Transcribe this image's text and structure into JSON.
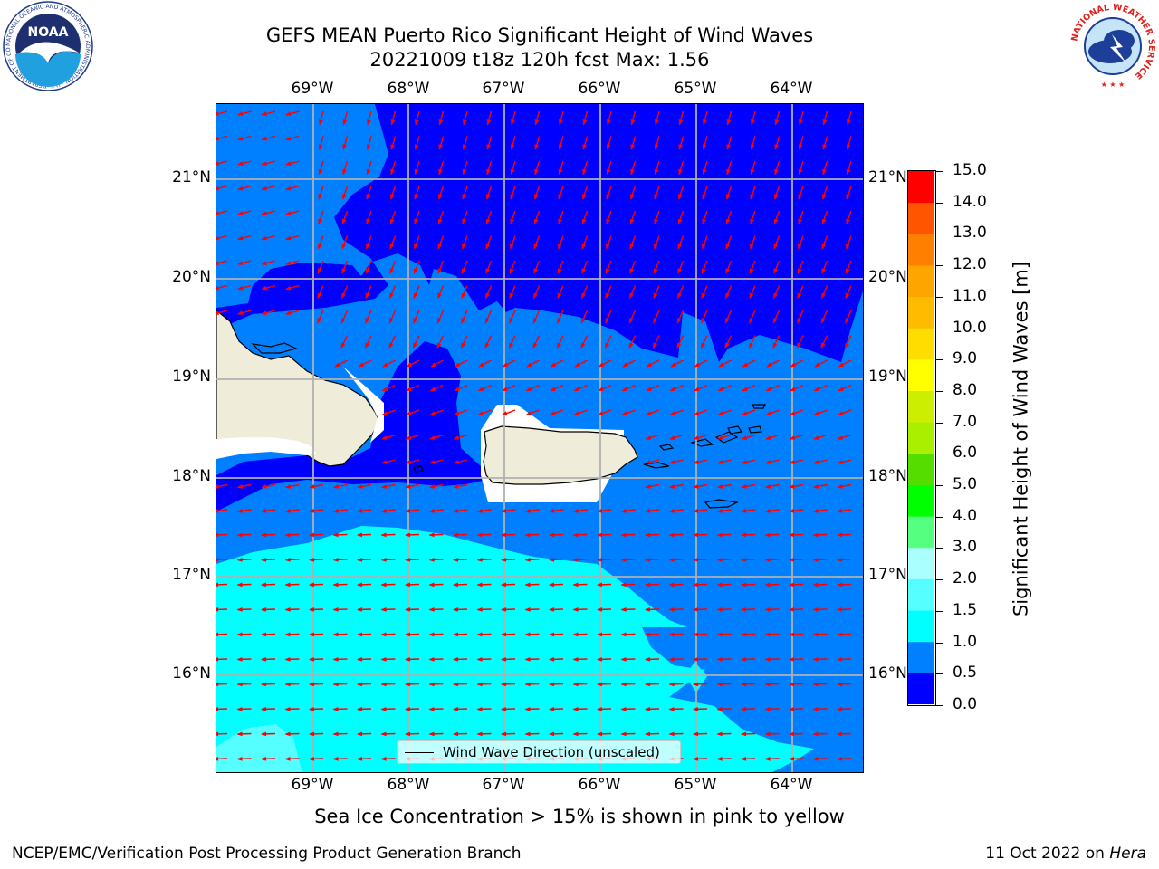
{
  "title": {
    "line1": "GEFS MEAN Puerto Rico Significant Height of Wind Waves",
    "line2": "20221009 t18z 120h fcst   Max: 1.56"
  },
  "logos": {
    "noaa_text": "NOAA",
    "noaa_ring_text": "NATIONAL OCEANIC AND ATMOSPHERIC ADMINISTRATION · U.S. DEPARTMENT OF COMMERCE",
    "nws_ring_text": "NATIONAL WEATHER SERVICE"
  },
  "map": {
    "lon_labels": [
      "69°W",
      "68°W",
      "67°W",
      "66°W",
      "65°W",
      "64°W"
    ],
    "lat_labels": [
      "21°N",
      "20°N",
      "19°N",
      "18°N",
      "17°N",
      "16°N"
    ],
    "legend_label": "Wind Wave Direction (unscaled)",
    "arrow_color": "#ff0000",
    "land_color": "#efedd9",
    "grid_color": "#b0b0b0"
  },
  "colorbar": {
    "label": "Significant Height of Wind Waves [m]",
    "ticks": [
      "15.0",
      "14.0",
      "13.0",
      "12.0",
      "11.0",
      "10.0",
      "9.0",
      "8.0",
      "7.0",
      "6.0",
      "5.0",
      "4.0",
      "3.0",
      "2.0",
      "1.5",
      "1.0",
      "0.5",
      "0.0"
    ],
    "colors": [
      "#0000ff",
      "#0080ff",
      "#00ffff",
      "#55ffff",
      "#aaffff",
      "#55ff80",
      "#00ff00",
      "#55dd00",
      "#aaee00",
      "#ccee00",
      "#ffff00",
      "#ffdd00",
      "#ffbb00",
      "#ffa500",
      "#ff8000",
      "#ff5500",
      "#ff0000"
    ]
  },
  "note": "Sea Ice Concentration > 15% is shown in pink to yellow",
  "footer": {
    "left": "NCEP/EMC/Verification Post Processing Product Generation Branch",
    "date": "11 Oct 2022 on",
    "host": "Hera"
  }
}
